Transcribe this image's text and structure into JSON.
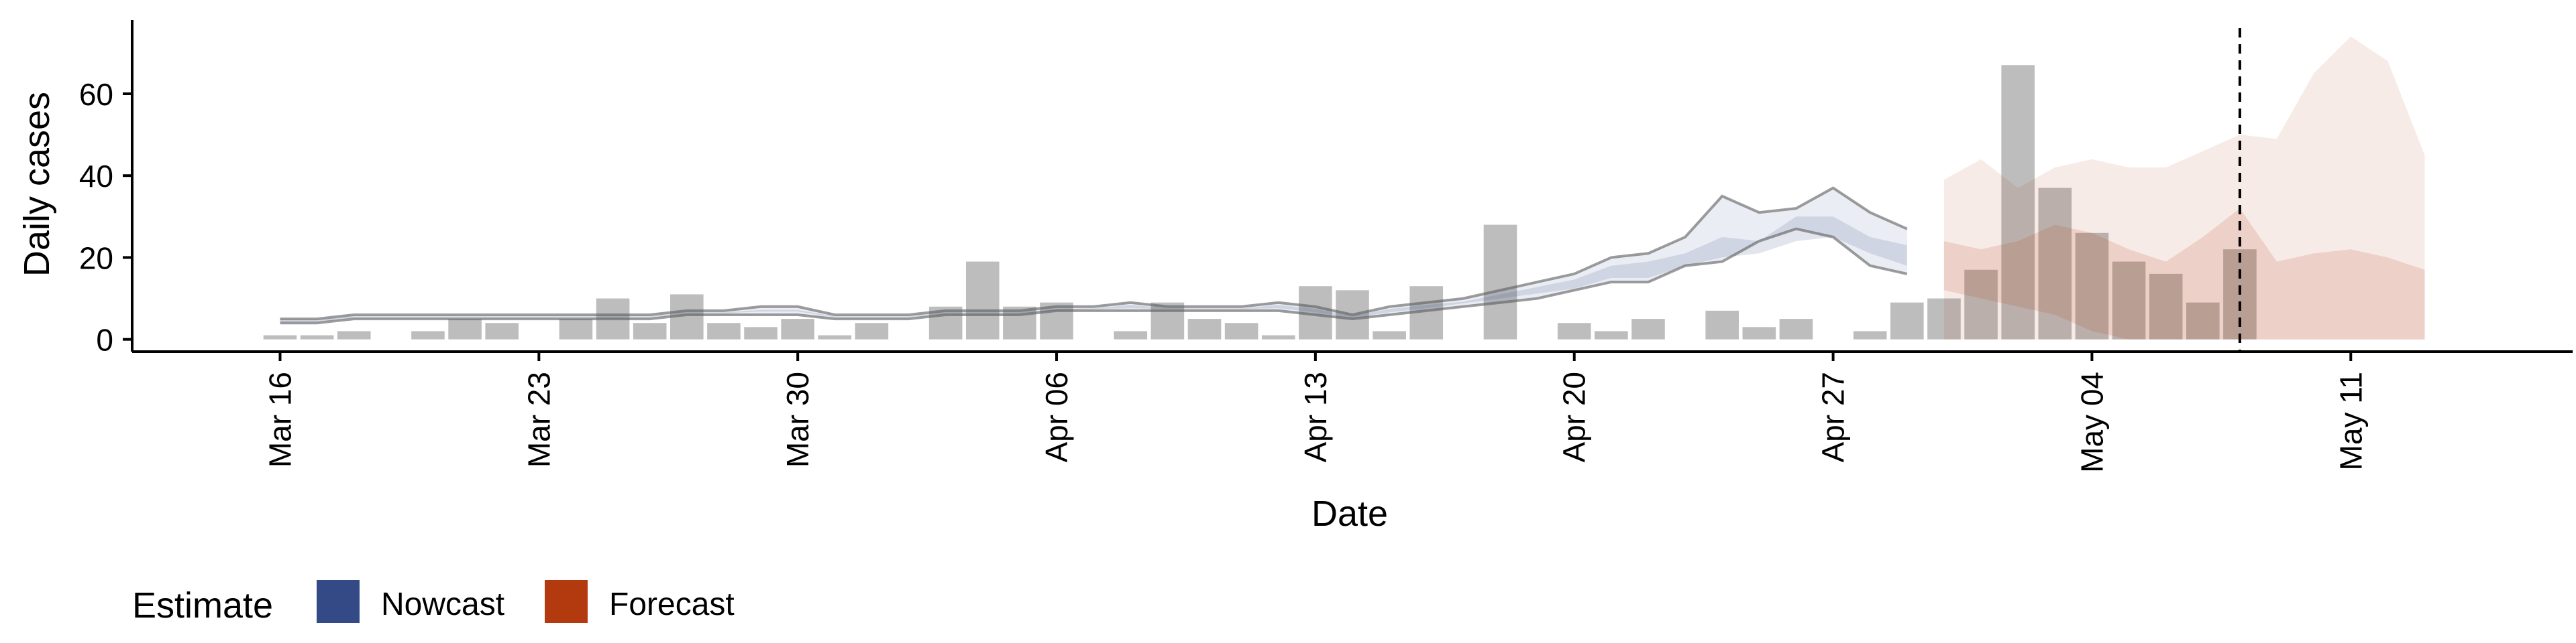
{
  "chart_data": {
    "type": "bar",
    "xlabel": "Date",
    "ylabel": "Daily cases",
    "ylim": [
      -3,
      78
    ],
    "y_ticks": [
      0,
      20,
      40,
      60
    ],
    "x_ticks": [
      {
        "date": "2020-03-16",
        "label": "Mar 16"
      },
      {
        "date": "2020-03-23",
        "label": "Mar 23"
      },
      {
        "date": "2020-03-30",
        "label": "Mar 30"
      },
      {
        "date": "2020-04-06",
        "label": "Apr 06"
      },
      {
        "date": "2020-04-13",
        "label": "Apr 13"
      },
      {
        "date": "2020-04-20",
        "label": "Apr 20"
      },
      {
        "date": "2020-04-27",
        "label": "Apr 27"
      },
      {
        "date": "2020-05-04",
        "label": "May 04"
      },
      {
        "date": "2020-05-11",
        "label": "May 11"
      }
    ],
    "xlim": [
      "2020-03-12",
      "2020-05-17"
    ],
    "vline_date": "2020-05-08",
    "grid": false,
    "legend": {
      "title": "Estimate",
      "position": "bottom-left",
      "entries": [
        {
          "label": "Nowcast",
          "color": "#344a87"
        },
        {
          "label": "Forecast",
          "color": "#b33a0f"
        }
      ]
    },
    "bars": {
      "color": "#bdbdbd",
      "dates": [
        "2020-03-16",
        "2020-03-17",
        "2020-03-18",
        "2020-03-19",
        "2020-03-20",
        "2020-03-21",
        "2020-03-22",
        "2020-03-23",
        "2020-03-24",
        "2020-03-25",
        "2020-03-26",
        "2020-03-27",
        "2020-03-28",
        "2020-03-29",
        "2020-03-30",
        "2020-03-31",
        "2020-04-01",
        "2020-04-02",
        "2020-04-03",
        "2020-04-04",
        "2020-04-05",
        "2020-04-06",
        "2020-04-07",
        "2020-04-08",
        "2020-04-09",
        "2020-04-10",
        "2020-04-11",
        "2020-04-12",
        "2020-04-13",
        "2020-04-14",
        "2020-04-15",
        "2020-04-16",
        "2020-04-17",
        "2020-04-18",
        "2020-04-19",
        "2020-04-20",
        "2020-04-21",
        "2020-04-22",
        "2020-04-23",
        "2020-04-24",
        "2020-04-25",
        "2020-04-26",
        "2020-04-27",
        "2020-04-28",
        "2020-04-29",
        "2020-04-30",
        "2020-05-01",
        "2020-05-02",
        "2020-05-03",
        "2020-05-04",
        "2020-05-05",
        "2020-05-06",
        "2020-05-07",
        "2020-05-08"
      ],
      "values": [
        1,
        1,
        2,
        0,
        2,
        5,
        4,
        0,
        5,
        10,
        4,
        11,
        4,
        3,
        5,
        1,
        4,
        0,
        8,
        19,
        8,
        9,
        0,
        2,
        9,
        5,
        4,
        1,
        13,
        12,
        2,
        13,
        0,
        28,
        0,
        4,
        2,
        5,
        0,
        7,
        3,
        5,
        0,
        2,
        9,
        10,
        17,
        67,
        37,
        26,
        19,
        16,
        9,
        22
      ]
    },
    "series": [
      {
        "estimate": "Nowcast",
        "color": "#344a87",
        "dates": [
          "2020-03-16",
          "2020-03-17",
          "2020-03-18",
          "2020-03-19",
          "2020-03-20",
          "2020-03-21",
          "2020-03-22",
          "2020-03-23",
          "2020-03-24",
          "2020-03-25",
          "2020-03-26",
          "2020-03-27",
          "2020-03-28",
          "2020-03-29",
          "2020-03-30",
          "2020-03-31",
          "2020-04-01",
          "2020-04-02",
          "2020-04-03",
          "2020-04-04",
          "2020-04-05",
          "2020-04-06",
          "2020-04-07",
          "2020-04-08",
          "2020-04-09",
          "2020-04-10",
          "2020-04-11",
          "2020-04-12",
          "2020-04-13",
          "2020-04-14",
          "2020-04-15",
          "2020-04-16",
          "2020-04-17",
          "2020-04-18",
          "2020-04-19",
          "2020-04-20",
          "2020-04-21",
          "2020-04-22",
          "2020-04-23",
          "2020-04-24",
          "2020-04-25",
          "2020-04-26",
          "2020-04-27",
          "2020-04-28",
          "2020-04-29"
        ],
        "upper90": [
          5,
          5,
          6,
          6,
          6,
          6,
          6,
          6,
          6,
          6,
          6,
          7,
          7,
          8,
          8,
          6,
          6,
          6,
          7,
          7,
          7,
          8,
          8,
          9,
          8,
          8,
          8,
          9,
          8,
          6,
          8,
          9,
          10,
          12,
          14,
          16,
          20,
          21,
          25,
          35,
          31,
          32,
          37,
          31,
          27
        ],
        "upper50": [
          4.8,
          4.8,
          5.6,
          5.6,
          5.6,
          5.6,
          5.6,
          5.6,
          5.6,
          5.6,
          5.6,
          6.6,
          6.6,
          7.2,
          7.2,
          5.6,
          5.6,
          5.6,
          6.6,
          6.6,
          6.6,
          7.4,
          7.6,
          8.4,
          7.6,
          7.6,
          7.6,
          8.4,
          7.4,
          5.8,
          7.4,
          8.4,
          9.2,
          11,
          12.8,
          14.6,
          18,
          19,
          21,
          25,
          24,
          30,
          30,
          25,
          23
        ],
        "lower50": [
          4.2,
          4.2,
          5.4,
          5.4,
          5.4,
          5.4,
          5.4,
          5.4,
          5.4,
          5.4,
          5.4,
          6.4,
          6.4,
          6.8,
          6.8,
          5.4,
          5.4,
          5.4,
          6.4,
          6.4,
          6.4,
          7,
          7.4,
          7.6,
          7.4,
          7.4,
          7.4,
          7.6,
          6.6,
          5.2,
          6.6,
          7.6,
          8.8,
          10,
          11.2,
          12.4,
          15,
          15,
          18,
          20,
          21,
          24,
          25,
          21,
          18
        ],
        "lower90": [
          4,
          4,
          5,
          5,
          5,
          5,
          5,
          5,
          5,
          5,
          5,
          6,
          6,
          6,
          6,
          5,
          5,
          5,
          6,
          6,
          6,
          7,
          7,
          7,
          7,
          7,
          7,
          7,
          6,
          5,
          6,
          7,
          8,
          9,
          10,
          12,
          14,
          14,
          18,
          19,
          24,
          27,
          25,
          18,
          16
        ]
      },
      {
        "estimate": "Forecast",
        "color": "#b33a0f",
        "dates": [
          "2020-04-30",
          "2020-05-01",
          "2020-05-02",
          "2020-05-03",
          "2020-05-04",
          "2020-05-05",
          "2020-05-06",
          "2020-05-07",
          "2020-05-08",
          "2020-05-09",
          "2020-05-10",
          "2020-05-11",
          "2020-05-12",
          "2020-05-13"
        ],
        "upper90": [
          39,
          44,
          37,
          42,
          44,
          42,
          42,
          46,
          50,
          49,
          65,
          74,
          68,
          45
        ],
        "upper50": [
          24,
          22,
          24,
          28,
          26,
          22,
          19,
          25,
          32,
          19,
          21,
          22,
          20,
          17
        ],
        "lower50": [
          12,
          10,
          8,
          6,
          2,
          0,
          0,
          0,
          0,
          0,
          0,
          0,
          0,
          0
        ],
        "lower90": [
          0,
          0,
          0,
          0,
          0,
          0,
          0,
          0,
          0,
          0,
          0,
          0,
          0,
          0
        ]
      }
    ]
  }
}
